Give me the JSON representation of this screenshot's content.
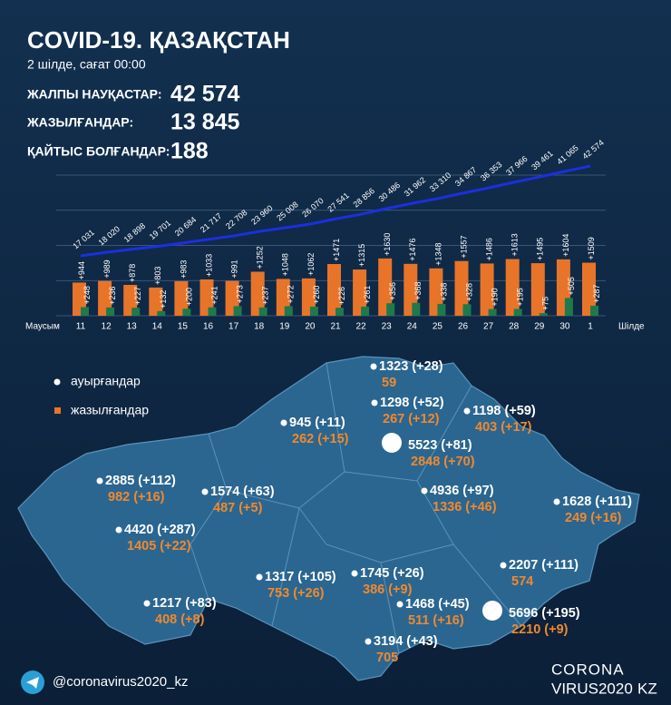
{
  "header": {
    "title": "COVID-19. ҚАЗАҚСТАН",
    "date": "2 шілде, сағат 00:00"
  },
  "stats": [
    {
      "label": "ЖАЛПЫ НАУҚАСТАР:",
      "value": "42 574"
    },
    {
      "label": "ЖАЗЫЛҒАНДАР:",
      "value": "13 845"
    },
    {
      "label": "ҚАЙТЫС БОЛҒАНДАР:",
      "value": "188"
    }
  ],
  "chart_data": {
    "type": "bar",
    "categories": [
      "11",
      "12",
      "13",
      "14",
      "15",
      "16",
      "17",
      "18",
      "19",
      "20",
      "21",
      "22",
      "23",
      "24",
      "25",
      "26",
      "27",
      "28",
      "29",
      "30",
      "1"
    ],
    "months": [
      "Маусым",
      "Шілде"
    ],
    "ylim": [
      0,
      4000
    ],
    "y2lim": [
      0,
      40000
    ],
    "grid": true,
    "series": [
      {
        "type": "line",
        "axis": "y2",
        "color": "#1b2fe0",
        "values": [
          17031,
          18020,
          18898,
          19701,
          20684,
          21717,
          22708,
          23960,
          25008,
          26070,
          27541,
          28856,
          30486,
          31962,
          33310,
          34867,
          36353,
          37966,
          39461,
          41065,
          42574
        ],
        "value_labels": [
          "17 031",
          "18 020",
          "18 898",
          "19 701",
          "20 684",
          "21 717",
          "22 708",
          "23 960",
          "25 008",
          "26 070",
          "27 541",
          "28 856",
          "30 486",
          "31 962",
          "33 310",
          "34 867",
          "36 353",
          "37 966",
          "39 461",
          "41 065",
          "42 574"
        ]
      },
      {
        "color": "#e8742a",
        "values": [
          944,
          989,
          878,
          803,
          983,
          1033,
          991,
          1252,
          1048,
          1062,
          1471,
          1315,
          1630,
          1476,
          1348,
          1557,
          1486,
          1613,
          1495,
          1604,
          1509
        ],
        "value_labels": [
          "+944",
          "+989",
          "+878",
          "+803",
          "+983",
          "+1033",
          "+991",
          "+1252",
          "+1048",
          "+1062",
          "+1471",
          "+1315",
          "+1630",
          "+1476",
          "+1348",
          "+1557",
          "+1486",
          "+1613",
          "+1495",
          "+1604",
          "+1509"
        ]
      },
      {
        "color": "#1e7a4b",
        "values": [
          248,
          236,
          227,
          132,
          200,
          241,
          273,
          237,
          272,
          260,
          226,
          261,
          356,
          368,
          338,
          328,
          190,
          195,
          75,
          505,
          287
        ],
        "value_labels": [
          "+248",
          "+236",
          "+227",
          "+132",
          "+200",
          "+241",
          "+273",
          "+237",
          "+272",
          "+260",
          "+226",
          "+261",
          "+356",
          "+368",
          "+338",
          "+328",
          "+190",
          "+195",
          "+75",
          "+505",
          "+287"
        ]
      }
    ]
  },
  "legend": [
    "ауырғандар",
    "жазылғандар"
  ],
  "map": {
    "regions": [
      {
        "cases": "1323 (+28)",
        "recovered": "59"
      },
      {
        "cases": "1298 (+52)",
        "recovered": "267 (+12)"
      },
      {
        "cases": "1198 (+59)",
        "recovered": "403 (+17)"
      },
      {
        "cases": "945 (+11)",
        "recovered": "262 (+15)"
      },
      {
        "cases": "5523 (+81)",
        "recovered": "2848 (+70)"
      },
      {
        "cases": "2885 (+112)",
        "recovered": "982 (+16)"
      },
      {
        "cases": "1574 (+63)",
        "recovered": "487 (+5)"
      },
      {
        "cases": "4936 (+97)",
        "recovered": "1336 (+46)"
      },
      {
        "cases": "1628 (+111)",
        "recovered": "249 (+16)"
      },
      {
        "cases": "4420 (+287)",
        "recovered": "1405 (+22)"
      },
      {
        "cases": "2207 (+111)",
        "recovered": "574"
      },
      {
        "cases": "1317 (+105)",
        "recovered": "753 (+26)"
      },
      {
        "cases": "1745 (+26)",
        "recovered": "386 (+9)"
      },
      {
        "cases": "1217 (+83)",
        "recovered": "408 (+8)"
      },
      {
        "cases": "1468 (+45)",
        "recovered": "511 (+16)"
      },
      {
        "cases": "5696 (+195)",
        "recovered": "2210 (+9)"
      },
      {
        "cases": "3194 (+43)",
        "recovered": "705"
      }
    ]
  },
  "footer": {
    "handle": "@coronavirus2020_kz",
    "logo_top": "CORONA",
    "logo_bottom": "VIRUS2020",
    "logo_suffix": "KZ"
  }
}
